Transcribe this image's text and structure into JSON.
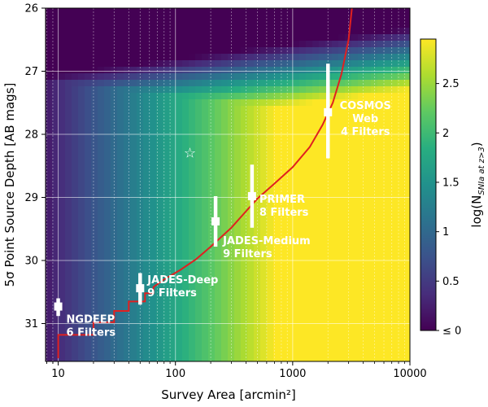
{
  "chart_data": {
    "type": "heatmap",
    "title": "",
    "xlabel": "Survey Area [arcmin²]",
    "ylabel": "5σ Point Source Depth [AB mags]",
    "xscale": "log",
    "xlim": [
      7.8,
      10000
    ],
    "ylim": [
      31.6,
      26
    ],
    "y_inverted": true,
    "grid": true,
    "x_ticks": [
      {
        "value": 10,
        "label": "10"
      },
      {
        "value": 100,
        "label": "100"
      },
      {
        "value": 1000,
        "label": "1000"
      },
      {
        "value": 10000,
        "label": "10000"
      }
    ],
    "y_ticks": [
      {
        "value": 26,
        "label": "26"
      },
      {
        "value": 27,
        "label": "27"
      },
      {
        "value": 28,
        "label": "28"
      },
      {
        "value": 29,
        "label": "29"
      },
      {
        "value": 30,
        "label": "30"
      },
      {
        "value": 31,
        "label": "31"
      }
    ],
    "colorbar": {
      "label": "log(N",
      "label_sub": "SNIa at z>3",
      "label_close": ")",
      "range": [
        0,
        2.95
      ],
      "colormap": "viridis",
      "ticks": [
        {
          "value": 0,
          "label": "≤ 0"
        },
        {
          "value": 0.5,
          "label": "0.5"
        },
        {
          "value": 1,
          "label": "1"
        },
        {
          "value": 1.5,
          "label": "1.5"
        },
        {
          "value": 2,
          "label": "2"
        },
        {
          "value": 2.5,
          "label": "2.5"
        }
      ]
    },
    "limit_curve": {
      "color": "#e02020",
      "points": [
        [
          10,
          31.55
        ],
        [
          10,
          31.18
        ],
        [
          20,
          31.18
        ],
        [
          20,
          30.98
        ],
        [
          30,
          30.98
        ],
        [
          30,
          30.8
        ],
        [
          40,
          30.8
        ],
        [
          40,
          30.65
        ],
        [
          55,
          30.65
        ],
        [
          55,
          30.52
        ],
        [
          65,
          30.52
        ],
        [
          65,
          30.42
        ],
        [
          80,
          30.3
        ],
        [
          110,
          30.15
        ],
        [
          150,
          29.98
        ],
        [
          200,
          29.78
        ],
        [
          300,
          29.48
        ],
        [
          400,
          29.22
        ],
        [
          500,
          29.02
        ],
        [
          700,
          28.78
        ],
        [
          1000,
          28.52
        ],
        [
          1400,
          28.2
        ],
        [
          1800,
          27.85
        ],
        [
          2200,
          27.5
        ],
        [
          2600,
          27.05
        ],
        [
          3000,
          26.5
        ],
        [
          3200,
          26
        ]
      ]
    },
    "star": {
      "x": 133,
      "y": 28.3,
      "symbol": "☆"
    },
    "surveys": [
      {
        "name": "NGDEEP",
        "filters": "6 Filters",
        "area": 10,
        "depth": 30.73,
        "depth_low": 30.6,
        "depth_high": 30.88
      },
      {
        "name": "JADES-Deep",
        "filters": "9 Filters",
        "area": 50,
        "depth": 30.44,
        "depth_low": 30.2,
        "depth_high": 30.7
      },
      {
        "name": "JADES-Medium",
        "filters": "9 Filters",
        "area": 220,
        "depth": 29.38,
        "depth_low": 28.98,
        "depth_high": 29.78
      },
      {
        "name": "PRIMER",
        "filters": "8 Filters",
        "area": 450,
        "depth": 28.98,
        "depth_low": 28.48,
        "depth_high": 29.48
      },
      {
        "name": "COSMOS",
        "name_line2": "Web",
        "filters": "4 Filters",
        "area": 2000,
        "depth": 27.65,
        "depth_low": 26.88,
        "depth_high": 28.38
      }
    ]
  }
}
